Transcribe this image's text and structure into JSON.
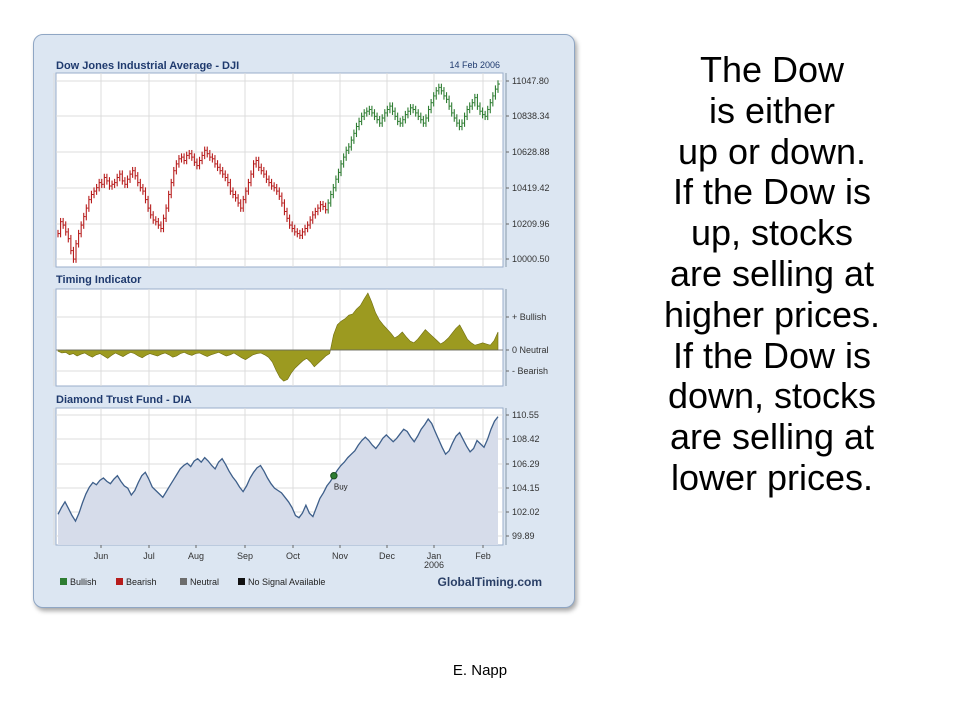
{
  "chart_data": [
    {
      "type": "ohlc",
      "title": "Dow Jones Industrial Average - DJI",
      "date": "14 Feb 2006",
      "yticks": [
        "11047.80",
        "10838.34",
        "10628.88",
        "10419.42",
        "10209.96",
        "10000.50"
      ],
      "ylim": [
        10000.5,
        11047.8
      ],
      "series_colors": {
        "Bullish": "#2e7d32",
        "Bearish": "#b71c1c"
      },
      "segments": [
        {
          "signal": "Bearish",
          "close": [
            10150,
            10220,
            10200,
            10160,
            10120,
            10050,
            10000,
            10090,
            10150,
            10200,
            10250,
            10300,
            10350,
            10380,
            10400,
            10420,
            10450,
            10440,
            10480,
            10460,
            10430,
            10440,
            10450,
            10480,
            10500,
            10460,
            10440,
            10470,
            10500,
            10520,
            10490,
            10450,
            10420,
            10400,
            10350,
            10300,
            10260,
            10230,
            10220,
            10200,
            10180,
            10240,
            10300,
            10380,
            10450,
            10520,
            10560,
            10590,
            10600,
            10580,
            10610,
            10620,
            10600,
            10570,
            10550,
            10580,
            10610,
            10640,
            10620,
            10600,
            10590,
            10560,
            10540,
            10520,
            10500,
            10480,
            10450,
            10400,
            10380,
            10360,
            10330,
            10300,
            10350,
            10400,
            10450,
            10500,
            10560,
            10580,
            10540,
            10520,
            10500,
            10470,
            10450,
            10430,
            10420,
            10400,
            10370,
            10330,
            10280,
            10240,
            10200,
            10180,
            10160,
            10150,
            10140,
            10160,
            10180,
            10200,
            10230,
            10260,
            10280,
            10300,
            10320,
            10310,
            10290
          ]
        },
        {
          "signal": "Bullish",
          "close": [
            10330,
            10380,
            10420,
            10470,
            10510,
            10560,
            10600,
            10640,
            10660,
            10700,
            10740,
            10780,
            10810,
            10840,
            10860,
            10870,
            10880,
            10860,
            10840,
            10820,
            10800,
            10830,
            10860,
            10880,
            10900,
            10870,
            10840,
            10810,
            10800,
            10820,
            10850,
            10870,
            10890,
            10880,
            10860,
            10840,
            10820,
            10800,
            10830,
            10880,
            10920,
            10960,
            10990,
            11010,
            10990,
            10960,
            10940,
            10900,
            10860,
            10830,
            10800,
            10780,
            10800,
            10840,
            10880,
            10900,
            10920,
            10950,
            10900,
            10870,
            10850,
            10840,
            10880,
            10920,
            10960,
            11000,
            11030
          ]
        }
      ]
    },
    {
      "type": "area",
      "title": "Timing Indicator",
      "yticks": [
        "+ Bullish",
        "0 Neutral",
        "- Bearish"
      ],
      "color": "#9c9a20",
      "values": [
        -0.02,
        -0.05,
        -0.04,
        -0.08,
        -0.06,
        -0.1,
        -0.07,
        -0.05,
        -0.09,
        -0.12,
        -0.08,
        -0.06,
        -0.1,
        -0.14,
        -0.09,
        -0.05,
        -0.08,
        -0.11,
        -0.07,
        -0.04,
        -0.06,
        -0.1,
        -0.13,
        -0.09,
        -0.06,
        -0.08,
        -0.1,
        -0.07,
        -0.05,
        -0.08,
        -0.12,
        -0.1,
        -0.06,
        -0.04,
        -0.07,
        -0.09,
        -0.06,
        -0.05,
        -0.08,
        -0.11,
        -0.08,
        -0.06,
        -0.04,
        -0.07,
        -0.1,
        -0.08,
        -0.05,
        -0.09,
        -0.13,
        -0.16,
        -0.12,
        -0.08,
        -0.06,
        -0.05,
        -0.08,
        -0.12,
        -0.2,
        -0.34,
        -0.46,
        -0.52,
        -0.49,
        -0.38,
        -0.3,
        -0.24,
        -0.18,
        -0.14,
        -0.2,
        -0.28,
        -0.22,
        -0.16,
        -0.1,
        -0.06,
        0.25,
        0.42,
        0.48,
        0.52,
        0.58,
        0.6,
        0.68,
        0.74,
        0.85,
        0.95,
        0.8,
        0.62,
        0.5,
        0.42,
        0.35,
        0.28,
        0.2,
        0.24,
        0.3,
        0.22,
        0.15,
        0.12,
        0.18,
        0.26,
        0.34,
        0.28,
        0.22,
        0.16,
        0.1,
        0.14,
        0.2,
        0.28,
        0.36,
        0.42,
        0.3,
        0.18,
        0.12,
        0.08,
        0.1,
        0.12,
        0.1,
        0.08,
        0.16,
        0.3
      ]
    },
    {
      "type": "line",
      "title": "Diamond Trust Fund - DIA",
      "yticks": [
        "110.55",
        "108.42",
        "106.29",
        "104.15",
        "102.02",
        "99.89"
      ],
      "ylim": [
        99.89,
        110.55
      ],
      "xticks": [
        "Jun",
        "Jul",
        "Aug",
        "Sep",
        "Oct",
        "Nov",
        "Dec",
        "Jan",
        "Feb"
      ],
      "xtick_sub": "2006",
      "annotation": "Buy",
      "values": [
        101.8,
        102.4,
        102.9,
        102.3,
        101.7,
        101.2,
        101.9,
        102.8,
        103.6,
        104.2,
        104.6,
        104.4,
        104.8,
        105.0,
        104.7,
        104.5,
        104.9,
        105.2,
        104.7,
        104.3,
        104.1,
        103.5,
        103.9,
        104.6,
        105.2,
        105.5,
        104.9,
        104.2,
        103.9,
        103.6,
        103.3,
        103.8,
        104.3,
        104.8,
        105.3,
        105.8,
        106.1,
        106.3,
        106.0,
        106.5,
        106.7,
        106.4,
        106.8,
        106.5,
        106.1,
        105.8,
        106.4,
        106.7,
        106.2,
        105.6,
        105.1,
        104.7,
        104.2,
        103.8,
        104.3,
        105.0,
        105.5,
        105.9,
        106.1,
        105.6,
        105.0,
        104.5,
        104.1,
        103.9,
        103.7,
        103.3,
        102.9,
        102.4,
        101.7,
        101.5,
        101.9,
        102.6,
        101.9,
        101.6,
        102.4,
        103.2,
        103.7,
        104.3,
        104.7,
        105.2,
        105.7,
        106.1,
        106.4,
        106.8,
        107.1,
        107.4,
        107.9,
        108.3,
        108.6,
        108.3,
        107.9,
        107.6,
        108.0,
        108.5,
        108.8,
        108.5,
        108.2,
        108.5,
        108.9,
        109.3,
        109.1,
        108.6,
        108.2,
        108.7,
        109.3,
        109.7,
        110.2,
        109.8,
        109.1,
        108.4,
        107.7,
        107.1,
        107.4,
        108.1,
        108.7,
        109.0,
        108.4,
        107.8,
        107.3,
        107.6,
        108.3,
        108.0,
        107.7,
        108.4,
        109.3,
        110.0,
        110.4
      ]
    }
  ],
  "legend": [
    {
      "label": "Bullish",
      "color": "#2e7d32"
    },
    {
      "label": "Bearish",
      "color": "#b71c1c"
    },
    {
      "label": "Neutral",
      "color": "#6d6d6d"
    },
    {
      "label": "No Signal Available",
      "color": "#111111"
    }
  ],
  "brand": "GlobalTiming.com",
  "slide_text": [
    "The Dow",
    "is either",
    "up or down.",
    "If the Dow is",
    "up, stocks",
    "are selling at",
    "higher prices.",
    "If the Dow is",
    "down, stocks",
    "are selling at",
    "lower prices."
  ],
  "footer": "E. Napp"
}
